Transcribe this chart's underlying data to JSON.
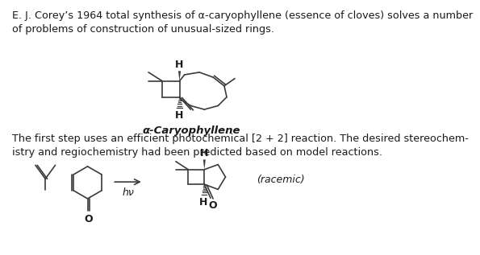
{
  "title_text": "E. J. Corey’s 1964 total synthesis of α-caryophyllene (essence of cloves) solves a number\nof problems of construction of unusual-sized rings.",
  "body_text": "The first step uses an efficient photochemical [2 + 2] reaction. The desired stereochem-\nistry and regiochemistry had been predicted based on model reactions.",
  "label_caryophyllene": "α-Caryophyllene",
  "label_racemic": "(racemic)",
  "label_hv": "hν",
  "bg_color": "#ffffff",
  "line_color": "#3a3a3a",
  "text_color": "#1a1a1a",
  "fontsize_title": 9.2,
  "fontsize_body": 9.2,
  "fontsize_label": 9.0,
  "fontsize_cary": 9.5
}
